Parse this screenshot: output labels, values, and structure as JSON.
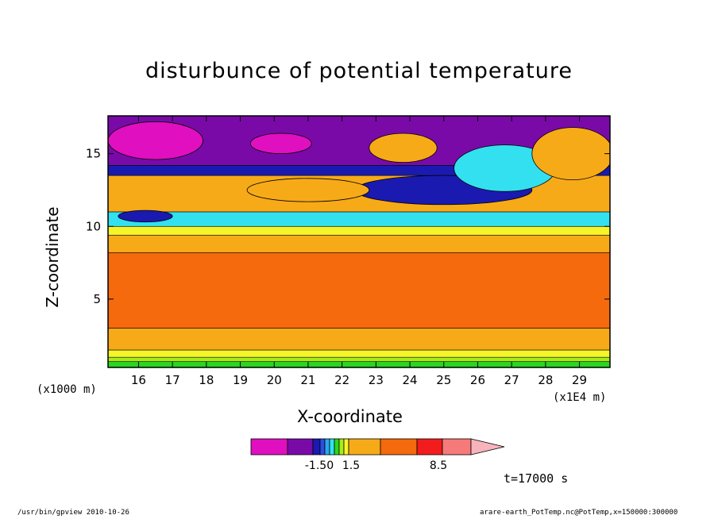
{
  "chart_data": {
    "type": "heatmap",
    "title": "disturbunce of potential temperature",
    "xlabel": "X-coordinate",
    "ylabel": "Z-coordinate",
    "x_unit": "(x1000 m)",
    "x_unit_right": "(x1E4 m)",
    "xlim": [
      15.1,
      29.9
    ],
    "ylim": [
      0.3,
      17.6
    ],
    "xticks": [
      16,
      17,
      18,
      19,
      20,
      21,
      22,
      23,
      24,
      25,
      26,
      27,
      28,
      29
    ],
    "yticks": [
      5,
      10,
      15
    ],
    "colorbar": {
      "colors": [
        "#e00fc0",
        "#7a0aa8",
        "#1a1ab0",
        "#2d4de0",
        "#2aa8f0",
        "#33e0f0",
        "#2ad620",
        "#a8ec18",
        "#f5f52a",
        "#f7aa18",
        "#f46a0c",
        "#f21c1c",
        "#f77a7a",
        "#f7b4bc"
      ],
      "labels": [
        "-1.50",
        "1.5",
        "8.5"
      ]
    },
    "bands": [
      {
        "z": [
          0.3,
          0.7
        ],
        "color": "#2ad620"
      },
      {
        "z": [
          0.7,
          1.0
        ],
        "color": "#a8ec18"
      },
      {
        "z": [
          1.0,
          1.5
        ],
        "color": "#f5f52a"
      },
      {
        "z": [
          1.5,
          3.0
        ],
        "color": "#f7aa18"
      },
      {
        "z": [
          3.0,
          8.2
        ],
        "color": "#f46a0c"
      },
      {
        "z": [
          8.2,
          9.4
        ],
        "color": "#f7aa18"
      },
      {
        "z": [
          9.4,
          10.0
        ],
        "color": "#f5f52a"
      },
      {
        "z": [
          10.0,
          11.0
        ],
        "color": "#33e0f0"
      },
      {
        "z": [
          11.0,
          13.5
        ],
        "color": "#f7aa18"
      },
      {
        "z": [
          13.5,
          14.2
        ],
        "color": "#1a1ab0"
      },
      {
        "z": [
          14.2,
          17.6
        ],
        "color": "#7a0aa8"
      }
    ],
    "blobs": [
      {
        "x": 16.5,
        "z": 15.9,
        "rx": 1.4,
        "rz": 1.3,
        "color": "#e00fc0"
      },
      {
        "x": 20.2,
        "z": 15.7,
        "rx": 0.9,
        "rz": 0.7,
        "color": "#e00fc0"
      },
      {
        "x": 25.0,
        "z": 12.5,
        "rx": 2.6,
        "rz": 1.0,
        "color": "#1a1ab0"
      },
      {
        "x": 16.2,
        "z": 10.7,
        "rx": 0.8,
        "rz": 0.4,
        "color": "#1a1ab0"
      },
      {
        "x": 26.8,
        "z": 14.0,
        "rx": 1.5,
        "rz": 1.6,
        "color": "#33e0f0"
      },
      {
        "x": 28.8,
        "z": 15.0,
        "rx": 1.2,
        "rz": 1.8,
        "color": "#f7aa18"
      },
      {
        "x": 23.8,
        "z": 15.4,
        "rx": 1.0,
        "rz": 1.0,
        "color": "#f7aa18"
      },
      {
        "x": 21.0,
        "z": 12.5,
        "rx": 1.8,
        "rz": 0.8,
        "color": "#f7aa18"
      }
    ]
  },
  "footer": {
    "left": "/usr/bin/gpview   2010-10-26",
    "right": "arare-earth_PotTemp.nc@PotTemp,x=150000:300000"
  },
  "time_label": "t=17000 s"
}
